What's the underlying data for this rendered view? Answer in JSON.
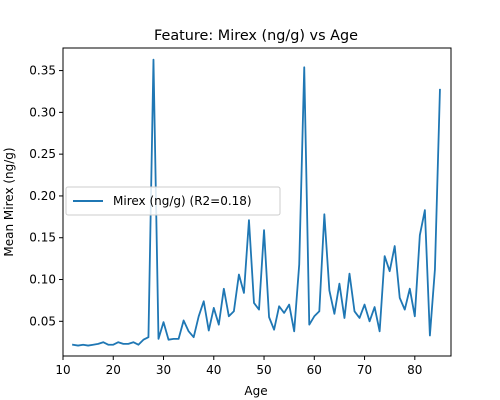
{
  "chart_data": {
    "type": "line",
    "title": "Feature: Mirex (ng/g) vs Age",
    "xlabel": "Age",
    "ylabel": "Mean Mirex (ng/g)",
    "xlim": [
      10,
      87.2
    ],
    "ylim": [
      0.0085,
      0.377
    ],
    "xticks": [
      10,
      20,
      30,
      40,
      50,
      60,
      70,
      80
    ],
    "yticks": [
      0.05,
      0.1,
      0.15,
      0.2,
      0.25,
      0.3,
      0.35
    ],
    "grid": false,
    "legend_position": "center-left",
    "series": [
      {
        "name": "Mirex (ng/g) (R2=0.18)",
        "color": "#1f77b4",
        "x": [
          12,
          13,
          14,
          15,
          16,
          17,
          18,
          19,
          20,
          21,
          22,
          23,
          24,
          25,
          26,
          27,
          28,
          29,
          30,
          31,
          32,
          33,
          34,
          35,
          36,
          37,
          38,
          39,
          40,
          41,
          42,
          43,
          44,
          45,
          46,
          47,
          48,
          49,
          50,
          51,
          52,
          53,
          54,
          55,
          56,
          57,
          58,
          59,
          60,
          61,
          62,
          63,
          64,
          65,
          66,
          67,
          68,
          69,
          70,
          71,
          72,
          73,
          74,
          75,
          76,
          77,
          78,
          79,
          80,
          81,
          82,
          83,
          84,
          85
        ],
        "y": [
          0.022,
          0.021,
          0.022,
          0.021,
          0.022,
          0.023,
          0.025,
          0.022,
          0.022,
          0.025,
          0.023,
          0.023,
          0.025,
          0.022,
          0.028,
          0.031,
          0.363,
          0.029,
          0.049,
          0.028,
          0.029,
          0.029,
          0.051,
          0.038,
          0.031,
          0.056,
          0.074,
          0.039,
          0.066,
          0.046,
          0.089,
          0.056,
          0.062,
          0.106,
          0.084,
          0.171,
          0.072,
          0.064,
          0.159,
          0.055,
          0.04,
          0.068,
          0.06,
          0.07,
          0.038,
          0.118,
          0.354,
          0.046,
          0.056,
          0.062,
          0.178,
          0.087,
          0.059,
          0.095,
          0.054,
          0.107,
          0.062,
          0.054,
          0.07,
          0.05,
          0.067,
          0.038,
          0.128,
          0.11,
          0.14,
          0.078,
          0.064,
          0.089,
          0.056,
          0.153,
          0.183,
          0.033,
          0.112,
          0.327
        ]
      }
    ]
  }
}
